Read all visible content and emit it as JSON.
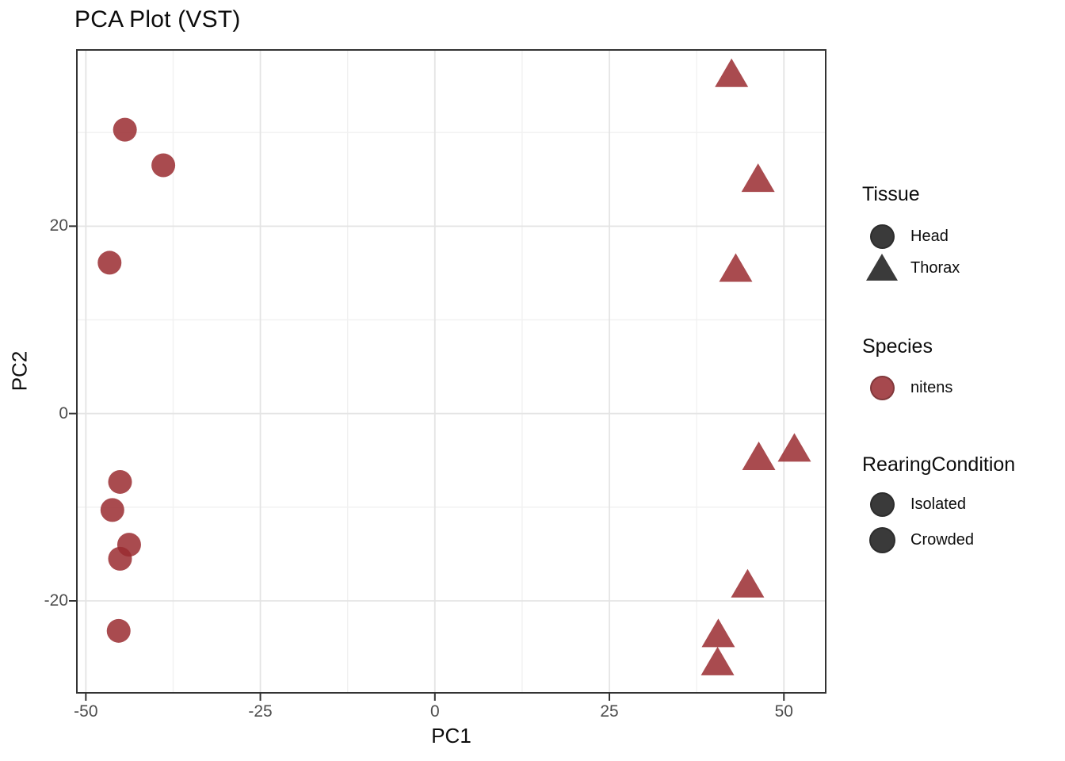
{
  "chart_data": {
    "type": "scatter",
    "title": "PCA Plot (VST)",
    "xlabel": "PC1",
    "ylabel": "PC2",
    "xlim": [
      -51.4,
      56.1
    ],
    "ylim": [
      -29.9,
      38.9
    ],
    "x_ticks": [
      -50,
      -25,
      0,
      25,
      50
    ],
    "x_tick_labels": [
      "-50",
      "-25",
      "0",
      "25",
      "50"
    ],
    "y_ticks": [
      20,
      0,
      -20
    ],
    "y_tick_labels": [
      "20",
      "0",
      "-20"
    ],
    "x_minor_gridlines": [
      -37.5,
      -12.5,
      12.5,
      37.5
    ],
    "y_minor_gridlines": [
      30,
      10,
      -10
    ],
    "grid": true,
    "legend_position": "right",
    "point_color": "#9A2B30",
    "point_alpha": 0.85,
    "series": [
      {
        "name": "Head",
        "shape": "circle",
        "points": [
          [
            -44.4,
            30.3
          ],
          [
            -38.9,
            26.5
          ],
          [
            -46.6,
            16.1
          ],
          [
            -45.1,
            -7.3
          ],
          [
            -46.2,
            -10.3
          ],
          [
            -43.8,
            -14
          ],
          [
            -45.1,
            -15.5
          ],
          [
            -45.3,
            -23.2
          ]
        ]
      },
      {
        "name": "Thorax",
        "shape": "triangle",
        "points": [
          [
            42.5,
            36.3
          ],
          [
            46.3,
            25.1
          ],
          [
            43.1,
            15.5
          ],
          [
            46.4,
            -4.6
          ],
          [
            51.5,
            -3.7
          ],
          [
            44.8,
            -18.2
          ],
          [
            40.6,
            -23.5
          ],
          [
            40.5,
            -26.5
          ]
        ]
      }
    ]
  },
  "legend": {
    "sections": [
      {
        "title": "Tissue",
        "items": [
          {
            "label": "Head",
            "shape": "circle",
            "color": "#3A3A3A"
          },
          {
            "label": "Thorax",
            "shape": "triangle",
            "color": "#3A3A3A"
          }
        ]
      },
      {
        "title": "Species",
        "items": [
          {
            "label": "nitens",
            "shape": "circle",
            "color": "#A6494E"
          }
        ]
      },
      {
        "title": "RearingCondition",
        "items": [
          {
            "label": "Isolated",
            "shape": "circle",
            "color": "#3A3A3A"
          },
          {
            "label": "Crowded",
            "shape": "circle",
            "color": "#3A3A3A"
          }
        ]
      }
    ]
  }
}
